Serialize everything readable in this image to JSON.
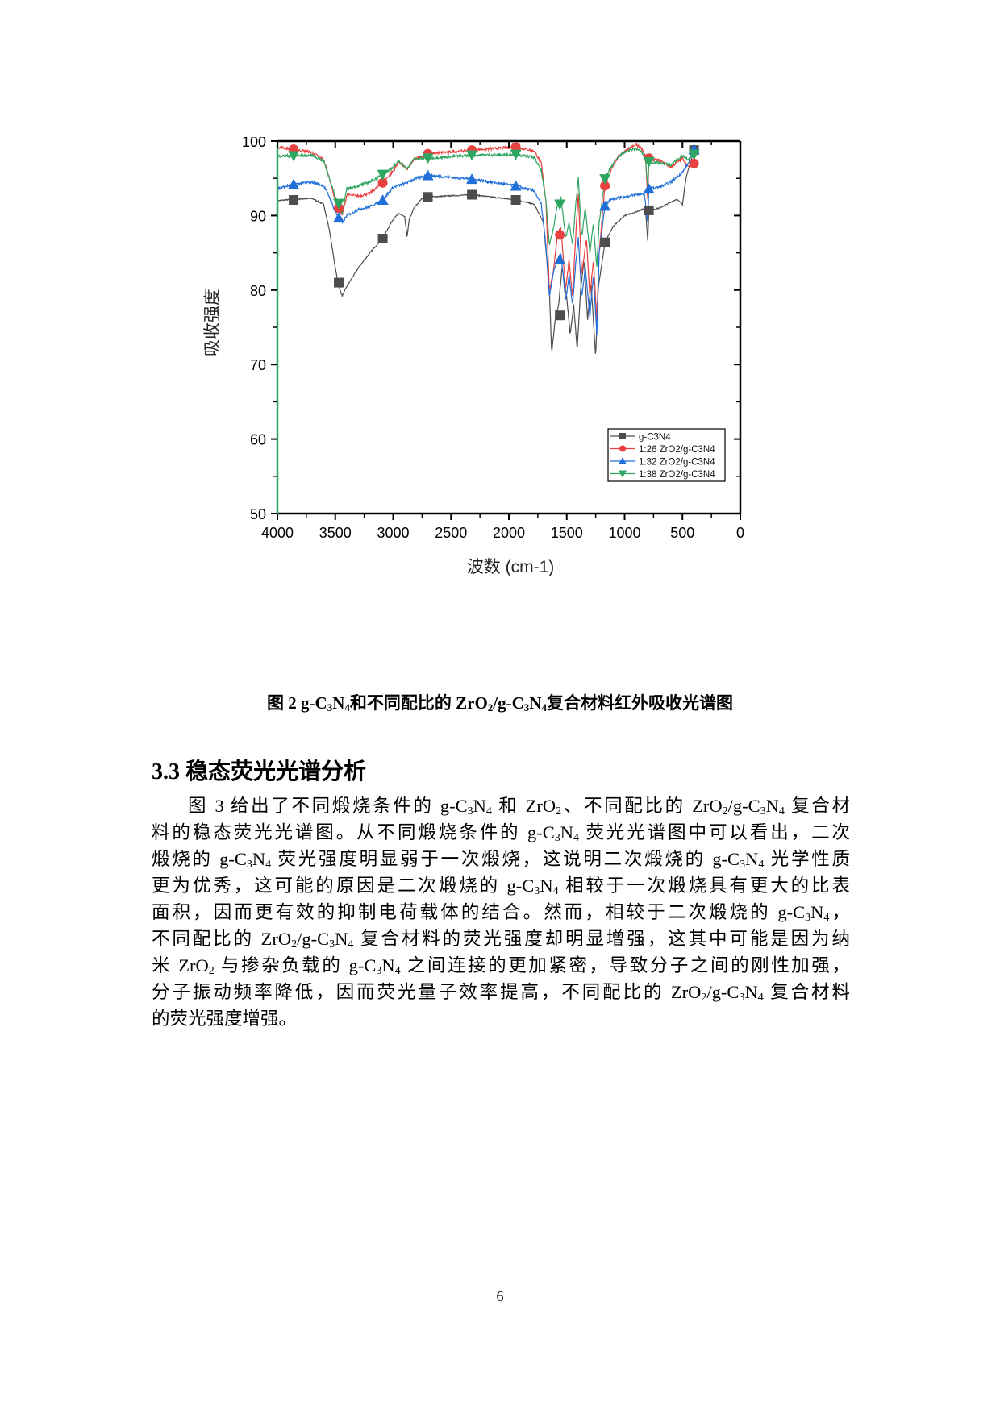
{
  "figure": {
    "number_label": "图 2",
    "caption_parts": {
      "prefix": "图 2  g-C",
      "s1": "3",
      "t1": "N",
      "s2": "4",
      "t2": "和不同配比的 ZrO",
      "s3": "2",
      "t3": "/g-C",
      "s4": "3",
      "t4": "N",
      "s5": "4",
      "t5": "复合材料红外吸收光谱图"
    }
  },
  "chart_data": {
    "type": "line",
    "title": "",
    "xlabel": "波数 (cm-1)",
    "ylabel": "吸收强度",
    "xlim": [
      4000,
      0
    ],
    "ylim": [
      50,
      100
    ],
    "x_ticks": [
      "4000",
      "3500",
      "3000",
      "2500",
      "2000",
      "1500",
      "1000",
      "500",
      "0"
    ],
    "y_ticks": [
      "50",
      "60",
      "70",
      "80",
      "90",
      "100"
    ],
    "grid": false,
    "legend_position": "lower right",
    "x": [
      3860,
      3470,
      3090,
      2700,
      2320,
      1940,
      1560,
      1170,
      790,
      400
    ],
    "series": [
      {
        "name": "g-C3N4",
        "color": "#4d4d4d",
        "marker": "square",
        "values": [
          92.1,
          81.0,
          86.9,
          92.5,
          92.8,
          92.1,
          76.6,
          86.4,
          90.7,
          98.8
        ],
        "notable_minima": [
          {
            "x": 3440,
            "y": 79.2
          },
          {
            "x": 1630,
            "y": 71.5
          },
          {
            "x": 1240,
            "y": 71.0
          }
        ]
      },
      {
        "name": "1:26 ZrO2/g-C3N4",
        "color": "#e8403e",
        "marker": "circle",
        "values": [
          98.9,
          91.0,
          94.4,
          98.3,
          98.8,
          99.2,
          87.4,
          94.0,
          97.7,
          97.0
        ]
      },
      {
        "name": "1:32 ZrO2/g-C3N4",
        "color": "#1f6fd9",
        "marker": "triangle-up",
        "values": [
          94.2,
          89.7,
          92.1,
          95.4,
          94.9,
          94.0,
          84.1,
          91.3,
          93.6,
          98.9
        ]
      },
      {
        "name": "1:38 ZrO2/g-C3N4",
        "color": "#2fa562",
        "marker": "triangle-down",
        "values": [
          98.0,
          91.6,
          95.5,
          97.7,
          98.1,
          98.2,
          91.5,
          94.9,
          97.2,
          98.2
        ]
      }
    ]
  },
  "section": {
    "title": "3.3 稳态荧光光谱分析"
  },
  "paragraph": {
    "lines": [
      [
        "图 3 给出了不同煅烧条件的 g-C",
        "3",
        "N",
        "4",
        " 和 ZrO",
        "2",
        "、不同配比的 ZrO",
        "2",
        "/g-C",
        "3",
        "N",
        "4",
        " 复合材"
      ],
      [
        "料的稳态荧光光谱图。从不同煅烧条件的 g-C",
        "3",
        "N",
        "4",
        " 荧光光谱图中可以看出，二次"
      ],
      [
        "煅烧的 g-C",
        "3",
        "N",
        "4",
        " 荧光强度明显弱于一次煅烧，这说明二次煅烧的 g-C",
        "3",
        "N",
        "4",
        " 光学性质"
      ],
      [
        "更为优秀，这可能的原因是二次煅烧的 g-C",
        "3",
        "N",
        "4",
        " 相较于一次煅烧具有更大的比表"
      ],
      [
        "面积，因而更有效的抑制电荷载体的结合。然而，相较于二次煅烧的 g-C",
        "3",
        "N",
        "4",
        "，"
      ],
      [
        "不同配比的 ZrO",
        "2",
        "/g-C",
        "3",
        "N",
        "4",
        " 复合材料的荧光强度却明显增强，这其中可能是因为纳"
      ],
      [
        "米 ZrO",
        "2",
        " 与掺杂负载的 g-C",
        "3",
        "N",
        "4",
        " 之间连接的更加紧密，导致分子之间的刚性加强，"
      ],
      [
        "分子振动频率降低，因而荧光量子效率提高，不同配比的 ZrO",
        "2",
        "/g-C",
        "3",
        "N",
        "4",
        " 复合材料"
      ],
      [
        "的荧光强度增强。"
      ]
    ]
  },
  "page_number": "6"
}
